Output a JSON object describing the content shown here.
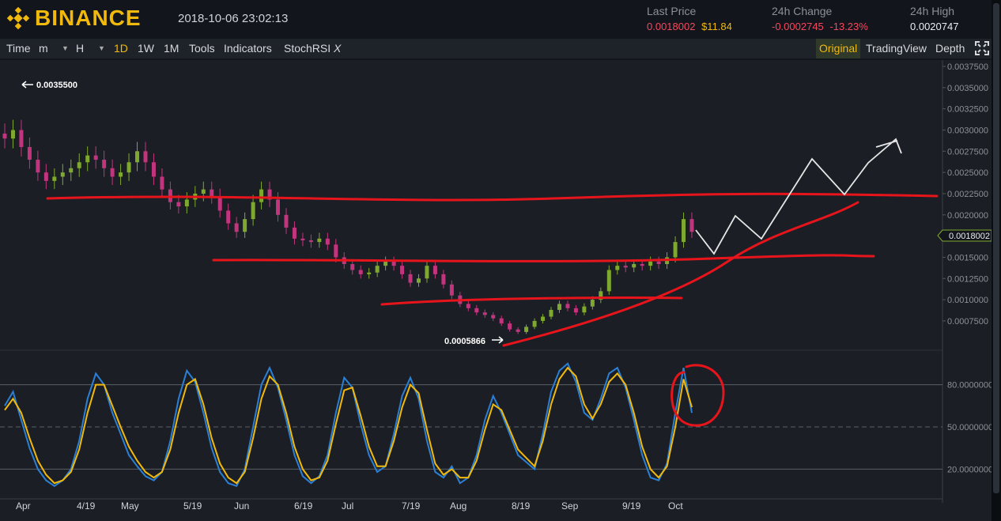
{
  "header": {
    "brand": "BINANCE",
    "datetime": "2018-10-06 23:02:13",
    "last_price_label": "Last Price",
    "last_price_value": "0.0018002",
    "last_price_usd": "$11.84",
    "change_label": "24h Change",
    "change_value": "-0.0002745",
    "change_pct": "-13.23%",
    "high_label": "24h High",
    "high_value": "0.0020747"
  },
  "toolbar": {
    "time": "Time",
    "minute": "m",
    "hour": "H",
    "d1": "1D",
    "w1": "1W",
    "m1": "1M",
    "tools": "Tools",
    "indicators": "Indicators",
    "stochrsi": "StochRSI",
    "stochrsi_close": "X",
    "original": "Original",
    "tradingview": "TradingView",
    "depth": "Depth"
  },
  "colors": {
    "brand": "#f0b90b",
    "up": "#7fa92e",
    "down": "#c2357e",
    "drawn_lines": "#e8141b",
    "stoch_k": "#2b7fd4",
    "stoch_d": "#f0b90b"
  },
  "chart_data": {
    "type": "candlestick",
    "price_axis_ticks": [
      "0.0037500",
      "0.0035000",
      "0.0032500",
      "0.0030000",
      "0.0027500",
      "0.0025000",
      "0.0022500",
      "0.0020000",
      "0.0018002",
      "0.0015000",
      "0.0012500",
      "0.0010000",
      "0.0007500"
    ],
    "current_price_label": "0.0018002",
    "high_annotation": "0.0035500",
    "low_annotation": "0.0005866",
    "x_axis_labels": [
      "Apr",
      "4/19",
      "May",
      "5/19",
      "Jun",
      "6/19",
      "Jul",
      "7/19",
      "Aug",
      "8/19",
      "Sep",
      "9/19",
      "Oct"
    ],
    "closes": [
      0.0029,
      0.003,
      0.0028,
      0.00265,
      0.0025,
      0.0024,
      0.00245,
      0.0025,
      0.00255,
      0.00262,
      0.0027,
      0.00265,
      0.00255,
      0.00245,
      0.0025,
      0.00262,
      0.00275,
      0.00262,
      0.00245,
      0.0023,
      0.00215,
      0.0021,
      0.00218,
      0.00225,
      0.0023,
      0.00222,
      0.00205,
      0.0019,
      0.0018,
      0.00195,
      0.00215,
      0.0023,
      0.00218,
      0.002,
      0.00185,
      0.00172,
      0.0017,
      0.00168,
      0.00172,
      0.00165,
      0.0015,
      0.00142,
      0.00135,
      0.0013,
      0.00132,
      0.0014,
      0.00145,
      0.0014,
      0.0013,
      0.0012,
      0.00125,
      0.0014,
      0.0013,
      0.00118,
      0.00105,
      0.00095,
      0.0009,
      0.00085,
      0.00082,
      0.00078,
      0.00072,
      0.00065,
      0.00062,
      0.00068,
      0.00075,
      0.0008,
      0.00088,
      0.00095,
      0.0009,
      0.00085,
      0.00092,
      0.001,
      0.0011,
      0.00135,
      0.0014,
      0.00138,
      0.00142,
      0.0014,
      0.00145,
      0.00142,
      0.0015,
      0.00168,
      0.00195,
      0.0018
    ],
    "indicator": {
      "name": "StochRSI",
      "ticks": [
        "80.0000000",
        "50.0000000",
        "20.0000000"
      ],
      "k": [
        65,
        75,
        55,
        35,
        20,
        12,
        8,
        12,
        20,
        40,
        70,
        88,
        80,
        60,
        45,
        30,
        22,
        15,
        12,
        18,
        40,
        70,
        90,
        82,
        60,
        35,
        18,
        10,
        8,
        20,
        50,
        80,
        92,
        78,
        55,
        30,
        15,
        10,
        15,
        30,
        60,
        85,
        78,
        52,
        30,
        18,
        22,
        45,
        72,
        85,
        70,
        40,
        18,
        14,
        22,
        10,
        14,
        30,
        55,
        72,
        60,
        45,
        30,
        25,
        20,
        45,
        75,
        90,
        95,
        82,
        60,
        55,
        70,
        88,
        92,
        78,
        55,
        30,
        14,
        12,
        24,
        60,
        92,
        60
      ],
      "d": [
        62,
        70,
        60,
        42,
        26,
        16,
        10,
        12,
        18,
        34,
        60,
        80,
        80,
        65,
        50,
        36,
        26,
        18,
        14,
        18,
        34,
        60,
        80,
        84,
        66,
        42,
        24,
        14,
        10,
        18,
        42,
        70,
        86,
        80,
        60,
        36,
        20,
        12,
        14,
        26,
        52,
        76,
        78,
        58,
        36,
        22,
        22,
        40,
        64,
        80,
        74,
        48,
        24,
        16,
        20,
        14,
        14,
        26,
        48,
        66,
        62,
        48,
        34,
        28,
        22,
        40,
        66,
        84,
        92,
        86,
        66,
        56,
        66,
        82,
        88,
        80,
        60,
        36,
        20,
        14,
        22,
        50,
        84,
        64
      ]
    },
    "annotations": [
      "red horizontal resistance lines",
      "red rising trendline",
      "white hand-drawn projected path",
      "red circle around StochRSI peak"
    ]
  }
}
